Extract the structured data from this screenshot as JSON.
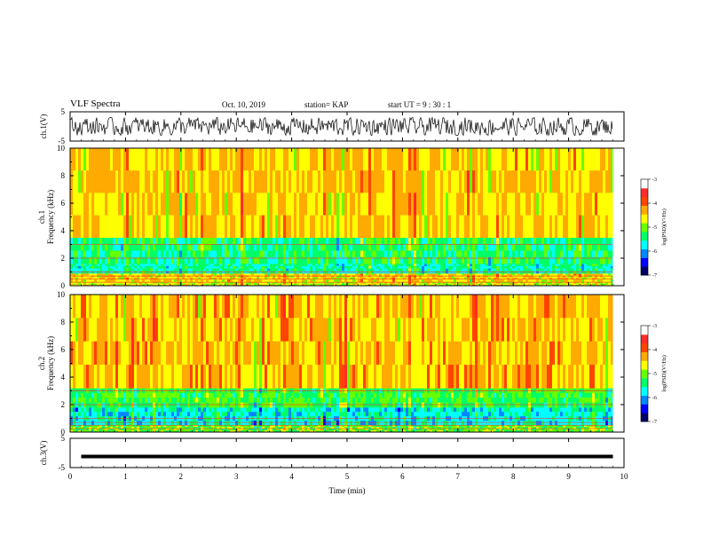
{
  "header": {
    "title": "VLF Spectra",
    "date": "Oct. 10, 2019",
    "station": "station= KAP",
    "start_ut": "start UT =  9 : 30 : 1"
  },
  "colors": {
    "spectrogram_scale": [
      "#000066",
      "#0000ff",
      "#0088ff",
      "#00ffff",
      "#00ff66",
      "#66ff00",
      "#ffff00",
      "#ffaa00",
      "#ff4400",
      "#ff2a2a",
      "#ffffff"
    ],
    "trace": "#000000",
    "background": "#ffffff"
  },
  "chart_data": [
    {
      "type": "line",
      "panel": "ch1-waveform",
      "ylabel": "ch.1(V)",
      "ylim": [
        -5,
        5
      ],
      "yticks": [
        "5",
        "-5"
      ],
      "xlim": [
        0,
        10
      ],
      "description_values": "noisy waveform oscillating roughly between -3 and 3 V",
      "amplitude_range": [
        -3,
        3
      ]
    },
    {
      "type": "heatmap",
      "panel": "ch1-spectrogram",
      "ylabel_channel": "ch.1",
      "ylabel": "Frequency (kHz)",
      "ylim": [
        0,
        10
      ],
      "yticks": [
        "10",
        "8",
        "6",
        "4",
        "2",
        "0"
      ],
      "xlim": [
        0,
        9.8
      ],
      "colorbar": {
        "label": "log(PSD)(V²/Hz)",
        "range": [
          -7,
          -3
        ],
        "ticks": [
          "-3",
          "-4",
          "-5",
          "-6",
          "-7"
        ]
      },
      "bands": [
        {
          "f_low": 0,
          "f_high": 0.3,
          "level": -4.2
        },
        {
          "f_low": 0.3,
          "f_high": 0.9,
          "level": -4.0
        },
        {
          "f_low": 0.9,
          "f_high": 1.6,
          "level": -5.2
        },
        {
          "f_low": 1.6,
          "f_high": 3.5,
          "level": -5.0
        },
        {
          "f_low": 3.5,
          "f_high": 10,
          "level": -3.9
        }
      ]
    },
    {
      "type": "heatmap",
      "panel": "ch2-spectrogram",
      "ylabel_channel": "ch.2",
      "ylabel": "Frequency (kHz)",
      "ylim": [
        0,
        10
      ],
      "yticks": [
        "10",
        "8",
        "6",
        "4",
        "2",
        "0"
      ],
      "xlim": [
        0,
        9.8
      ],
      "colorbar": {
        "label": "log(PSD)(V²/Hz)",
        "range": [
          -7,
          -3
        ],
        "ticks": [
          "-3",
          "-4",
          "-5",
          "-6",
          "-7"
        ]
      },
      "bands": [
        {
          "f_low": 0,
          "f_high": 0.5,
          "level": -4.6
        },
        {
          "f_low": 0.5,
          "f_high": 1.8,
          "level": -5.4
        },
        {
          "f_low": 1.8,
          "f_high": 3.2,
          "level": -4.8
        },
        {
          "f_low": 3.2,
          "f_high": 10,
          "level": -3.8
        }
      ]
    },
    {
      "type": "line",
      "panel": "ch3-waveform",
      "ylabel": "ch.3(V)",
      "ylim": [
        -5,
        5
      ],
      "yticks": [
        "5",
        "-5"
      ],
      "xlim": [
        0,
        10
      ],
      "value": -1.2
    }
  ],
  "xaxis": {
    "label": "Time (min)",
    "ticks": [
      "0",
      "1",
      "2",
      "3",
      "4",
      "5",
      "6",
      "7",
      "8",
      "9",
      "10"
    ]
  }
}
